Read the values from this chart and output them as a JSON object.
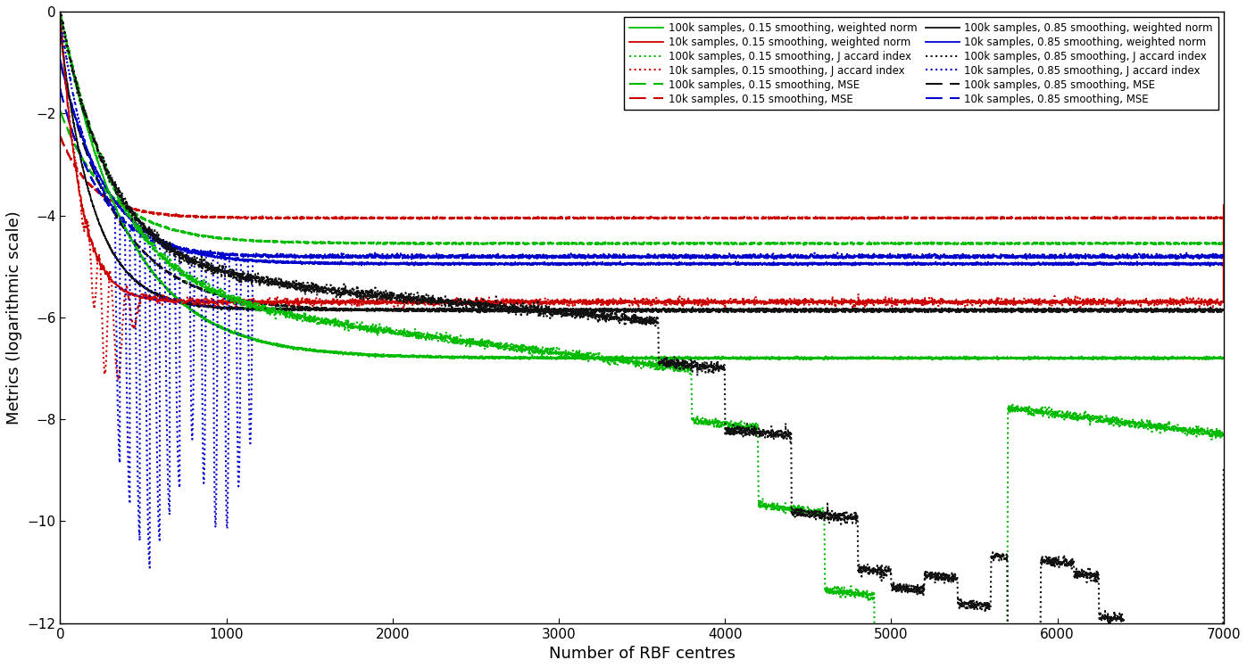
{
  "xlabel": "Number of RBF centres",
  "ylabel": "Metrics (logarithmic scale)",
  "xlim": [
    0,
    7000
  ],
  "ylim": [
    -12,
    0
  ],
  "yticks": [
    0,
    -2,
    -4,
    -6,
    -8,
    -10,
    -12
  ],
  "xticks": [
    0,
    1000,
    2000,
    3000,
    4000,
    5000,
    6000,
    7000
  ],
  "green": "#00bb00",
  "black": "#111111",
  "red": "#cc0000",
  "blue": "#0000cc",
  "background_color": "#ffffff"
}
